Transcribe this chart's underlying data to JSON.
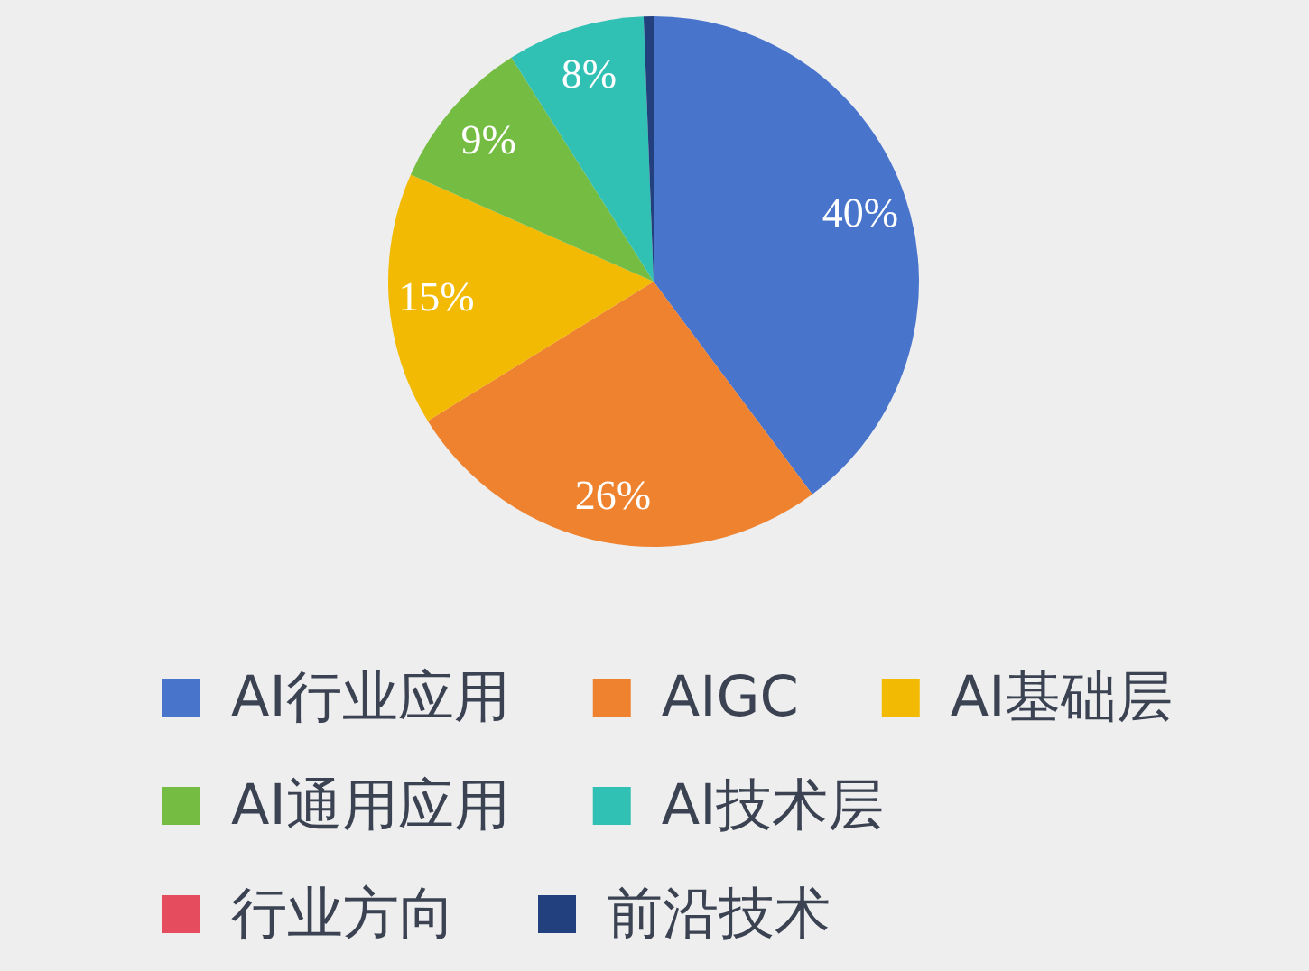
{
  "chart_data": {
    "type": "pie",
    "categories": [
      "AI行业应用",
      "AIGC",
      "AI基础层",
      "AI通用应用",
      "AI技术层",
      "行业方向",
      "前沿技术"
    ],
    "values": [
      39.8,
      26.4,
      15.4,
      9.4,
      8.4,
      0,
      0.6
    ],
    "colors": [
      "#4874cb",
      "#ee822f",
      "#f2ba02",
      "#75bd42",
      "#30c0b4",
      "#e54c5e",
      "#223f7e"
    ],
    "value_labels": [
      "40%",
      "26%",
      "15%",
      "9%",
      "8%",
      null,
      null
    ],
    "legend": "bottom"
  }
}
